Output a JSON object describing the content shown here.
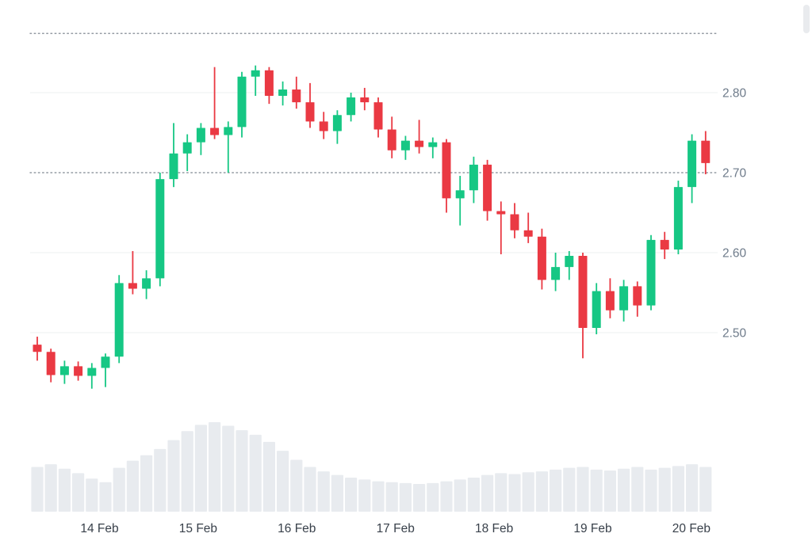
{
  "page": {
    "background": "#ffffff"
  },
  "chart_data": {
    "type": "candlestick",
    "title": "",
    "xlabel": "",
    "ylabel": "",
    "legend": "none",
    "grid": "horizontal",
    "x_tick_labels": [
      "14 Feb",
      "15 Feb",
      "16 Feb",
      "17 Feb",
      "18 Feb",
      "19 Feb",
      "20 Feb"
    ],
    "y_tick_labels": [
      "2.80",
      "2.70",
      "2.60",
      "2.50"
    ],
    "y_ticks": [
      2.8,
      2.7,
      2.6,
      2.5
    ],
    "ylim": [
      2.42,
      2.88
    ],
    "dotted_price_line": 2.7,
    "upper_dotted_gridline": 2.874,
    "colors": {
      "up": "#16c784",
      "down": "#ea3943",
      "volume_bar": "#e8ebef",
      "gridline": "#edf0f2",
      "dotted_line": "#949ba3",
      "y_label": "#6e7b8a",
      "x_label": "#39414b"
    },
    "ohlc_key": [
      "open",
      "high",
      "low",
      "close"
    ],
    "candles": [
      [
        2.485,
        2.495,
        2.465,
        2.476
      ],
      [
        2.476,
        2.48,
        2.438,
        2.447
      ],
      [
        2.447,
        2.465,
        2.436,
        2.458
      ],
      [
        2.458,
        2.464,
        2.44,
        2.446
      ],
      [
        2.446,
        2.462,
        2.43,
        2.456
      ],
      [
        2.456,
        2.474,
        2.432,
        2.47
      ],
      [
        2.47,
        2.572,
        2.462,
        2.562
      ],
      [
        2.562,
        2.602,
        2.548,
        2.555
      ],
      [
        2.555,
        2.578,
        2.542,
        2.568
      ],
      [
        2.568,
        2.7,
        2.558,
        2.692
      ],
      [
        2.692,
        2.762,
        2.682,
        2.724
      ],
      [
        2.724,
        2.748,
        2.702,
        2.738
      ],
      [
        2.738,
        2.762,
        2.722,
        2.756
      ],
      [
        2.756,
        2.832,
        2.742,
        2.747
      ],
      [
        2.747,
        2.764,
        2.7,
        2.757
      ],
      [
        2.757,
        2.826,
        2.744,
        2.82
      ],
      [
        2.82,
        2.834,
        2.796,
        2.828
      ],
      [
        2.828,
        2.832,
        2.786,
        2.796
      ],
      [
        2.796,
        2.814,
        2.784,
        2.804
      ],
      [
        2.804,
        2.82,
        2.78,
        2.788
      ],
      [
        2.788,
        2.812,
        2.756,
        2.764
      ],
      [
        2.764,
        2.776,
        2.742,
        2.752
      ],
      [
        2.752,
        2.778,
        2.736,
        2.772
      ],
      [
        2.772,
        2.8,
        2.764,
        2.794
      ],
      [
        2.794,
        2.806,
        2.778,
        2.788
      ],
      [
        2.788,
        2.794,
        2.744,
        2.754
      ],
      [
        2.754,
        2.77,
        2.718,
        2.728
      ],
      [
        2.728,
        2.746,
        2.716,
        2.74
      ],
      [
        2.74,
        2.766,
        2.724,
        2.732
      ],
      [
        2.732,
        2.744,
        2.718,
        2.738
      ],
      [
        2.738,
        2.742,
        2.65,
        2.668
      ],
      [
        2.668,
        2.696,
        2.634,
        2.678
      ],
      [
        2.678,
        2.72,
        2.662,
        2.71
      ],
      [
        2.71,
        2.716,
        2.64,
        2.652
      ],
      [
        2.652,
        2.664,
        2.598,
        2.648
      ],
      [
        2.648,
        2.662,
        2.618,
        2.628
      ],
      [
        2.628,
        2.65,
        2.612,
        2.62
      ],
      [
        2.62,
        2.63,
        2.554,
        2.566
      ],
      [
        2.566,
        2.6,
        2.552,
        2.582
      ],
      [
        2.582,
        2.602,
        2.566,
        2.596
      ],
      [
        2.596,
        2.6,
        2.468,
        2.506
      ],
      [
        2.506,
        2.562,
        2.498,
        2.552
      ],
      [
        2.552,
        2.568,
        2.518,
        2.528
      ],
      [
        2.528,
        2.566,
        2.514,
        2.558
      ],
      [
        2.558,
        2.564,
        2.52,
        2.534
      ],
      [
        2.534,
        2.622,
        2.528,
        2.616
      ],
      [
        2.616,
        2.626,
        2.592,
        2.604
      ],
      [
        2.604,
        2.69,
        2.598,
        2.682
      ],
      [
        2.682,
        2.748,
        2.662,
        2.74
      ],
      [
        2.74,
        2.752,
        2.698,
        2.712
      ]
    ],
    "volume_relative": [
      0.5,
      0.53,
      0.48,
      0.43,
      0.37,
      0.33,
      0.49,
      0.57,
      0.63,
      0.7,
      0.8,
      0.9,
      0.97,
      1.0,
      0.96,
      0.91,
      0.86,
      0.78,
      0.68,
      0.58,
      0.5,
      0.45,
      0.41,
      0.38,
      0.36,
      0.34,
      0.33,
      0.32,
      0.31,
      0.32,
      0.34,
      0.36,
      0.38,
      0.41,
      0.43,
      0.42,
      0.44,
      0.45,
      0.47,
      0.49,
      0.5,
      0.47,
      0.46,
      0.48,
      0.5,
      0.47,
      0.49,
      0.51,
      0.53,
      0.5
    ]
  }
}
